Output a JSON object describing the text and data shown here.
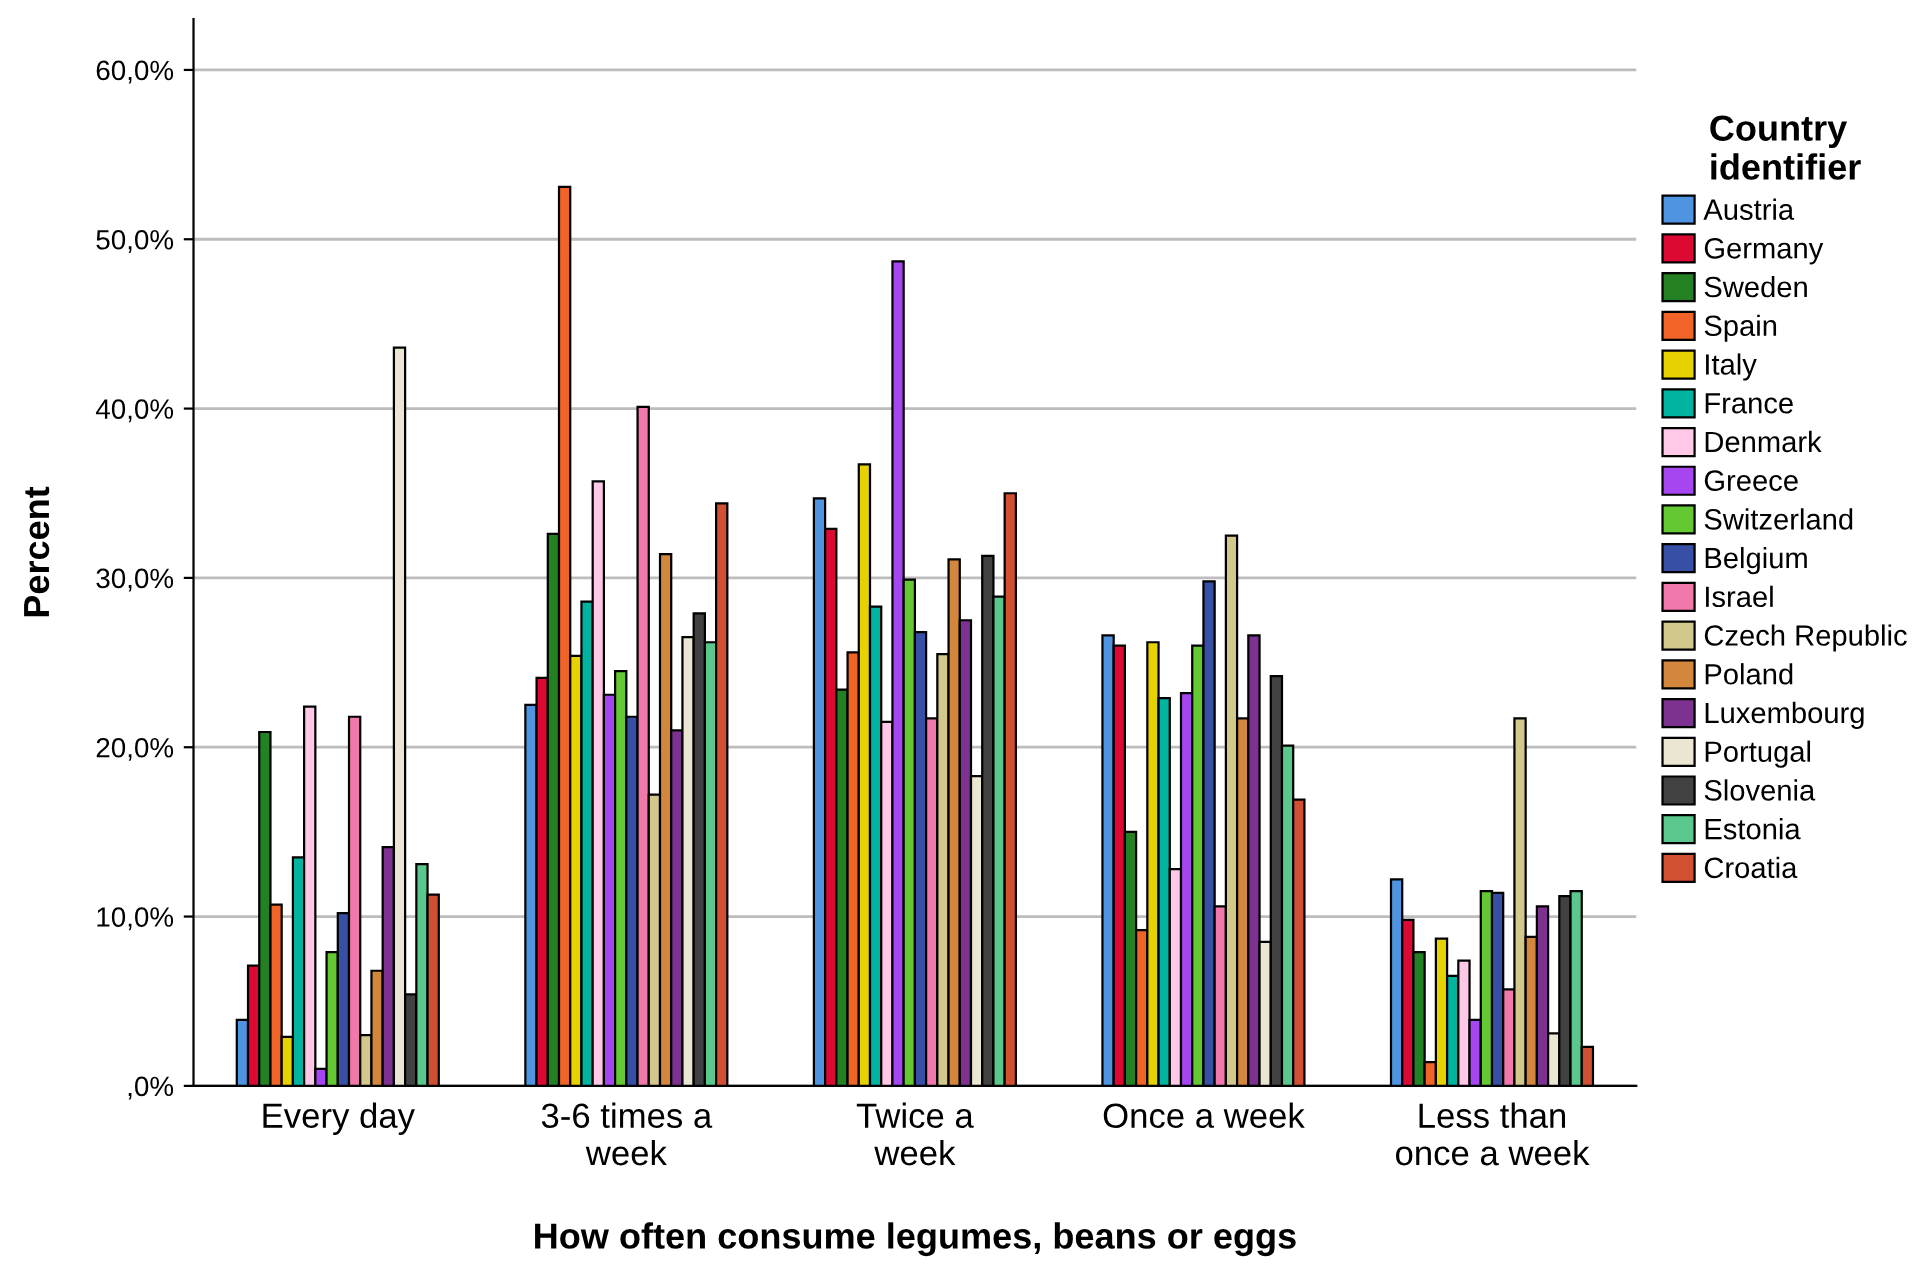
{
  "chart_data": {
    "type": "bar",
    "xlabel": "How often consume legumes, beans or eggs",
    "ylabel": "Percent",
    "legend_title": "Country identifier",
    "categories": [
      "Every day",
      "3-6 times a\nweek",
      "Twice a\nweek",
      "Once a week",
      "Less than\nonce a week"
    ],
    "series": [
      {
        "name": "Austria",
        "color": "#4f94e0",
        "values": [
          3.9,
          22.5,
          34.7,
          26.6,
          12.2
        ]
      },
      {
        "name": "Germany",
        "color": "#dc0a32",
        "values": [
          7.1,
          24.1,
          32.9,
          26.0,
          9.8
        ]
      },
      {
        "name": "Sweden",
        "color": "#238023",
        "values": [
          20.9,
          32.6,
          23.4,
          15.0,
          7.9
        ]
      },
      {
        "name": "Spain",
        "color": "#f06428",
        "values": [
          10.7,
          53.1,
          25.6,
          9.2,
          1.4
        ]
      },
      {
        "name": "Italy",
        "color": "#e6d200",
        "values": [
          2.9,
          25.4,
          36.7,
          26.2,
          8.7
        ]
      },
      {
        "name": "France",
        "color": "#00b4a0",
        "values": [
          13.5,
          28.6,
          28.3,
          22.9,
          6.5
        ]
      },
      {
        "name": "Denmark",
        "color": "#ffc8e6",
        "values": [
          22.4,
          35.7,
          21.5,
          12.8,
          7.4
        ]
      },
      {
        "name": "Greece",
        "color": "#a546f0",
        "values": [
          1.0,
          23.1,
          48.7,
          23.2,
          3.9
        ]
      },
      {
        "name": "Switzerland",
        "color": "#64c832",
        "values": [
          7.9,
          24.5,
          29.9,
          26.0,
          11.5
        ]
      },
      {
        "name": "Belgium",
        "color": "#3750a5",
        "values": [
          10.2,
          21.8,
          26.8,
          29.8,
          11.4
        ]
      },
      {
        "name": "Israel",
        "color": "#f078aa",
        "values": [
          21.8,
          40.1,
          21.7,
          10.6,
          5.7
        ]
      },
      {
        "name": "Czech Republic",
        "color": "#d2c88c",
        "values": [
          3.0,
          17.2,
          25.5,
          32.5,
          21.7
        ]
      },
      {
        "name": "Poland",
        "color": "#d2873c",
        "values": [
          6.8,
          31.4,
          31.1,
          21.7,
          8.8
        ]
      },
      {
        "name": "Luxembourg",
        "color": "#7d3291",
        "values": [
          14.1,
          21.0,
          27.5,
          26.6,
          10.6
        ]
      },
      {
        "name": "Portugal",
        "color": "#ebe6d2",
        "values": [
          43.6,
          26.5,
          18.3,
          8.5,
          3.1
        ]
      },
      {
        "name": "Slovenia",
        "color": "#414141",
        "values": [
          5.4,
          27.9,
          31.3,
          24.2,
          11.2
        ]
      },
      {
        "name": "Estonia",
        "color": "#5ac88c",
        "values": [
          13.1,
          26.2,
          28.9,
          20.1,
          11.5
        ]
      },
      {
        "name": "Croatia",
        "color": "#d25032",
        "values": [
          11.3,
          34.4,
          35.0,
          16.9,
          2.3
        ]
      }
    ],
    "ylim": [
      0,
      63
    ],
    "yticks": [
      {
        "value": 0,
        "label": ",0%"
      },
      {
        "value": 10,
        "label": "10,0%"
      },
      {
        "value": 20,
        "label": "20,0%"
      },
      {
        "value": 30,
        "label": "30,0%"
      },
      {
        "value": 40,
        "label": "40,0%"
      },
      {
        "value": 50,
        "label": "50,0%"
      },
      {
        "value": 60,
        "label": "60,0%"
      }
    ],
    "grid": "y",
    "legend": "right"
  }
}
